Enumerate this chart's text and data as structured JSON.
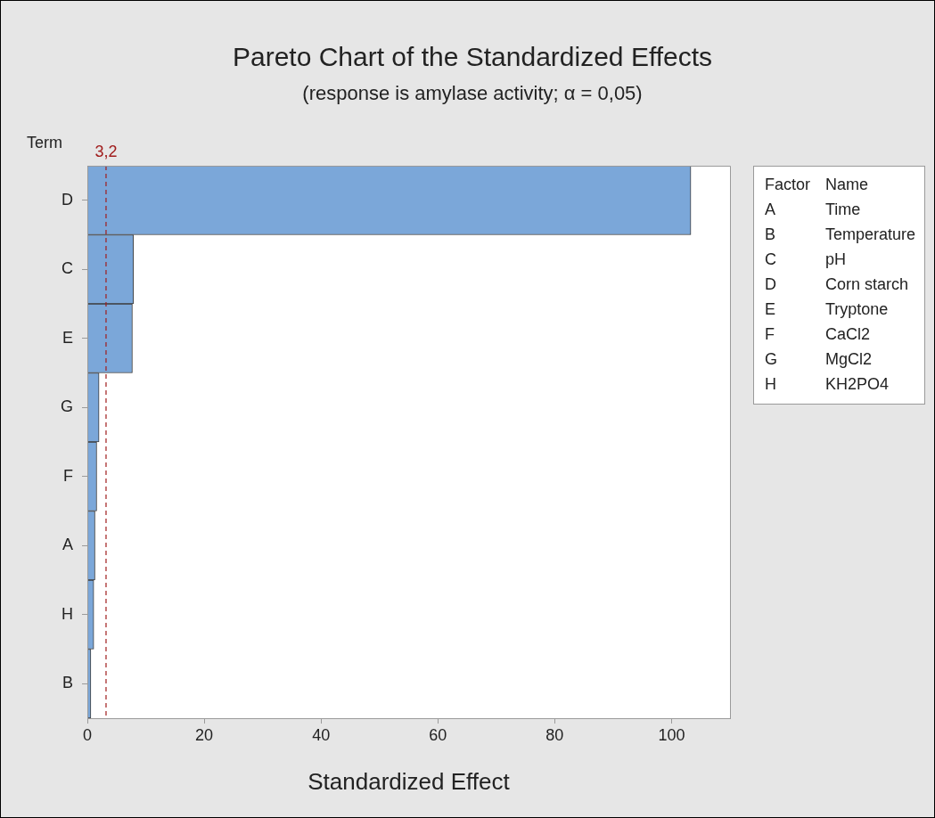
{
  "chart_data": {
    "type": "bar",
    "orientation": "horizontal",
    "title": "Pareto Chart of the Standardized Effects",
    "subtitle": "(response is amylase activity; α = 0,05)",
    "xlabel": "Standardized Effect",
    "ylabel": "Term",
    "categories": [
      "D",
      "C",
      "E",
      "G",
      "F",
      "A",
      "H",
      "B"
    ],
    "values": [
      103.3,
      7.9,
      7.7,
      2.0,
      1.6,
      1.3,
      1.1,
      0.6
    ],
    "color": "#7ba7d9",
    "xlim": [
      0,
      110
    ],
    "xticks": [
      0,
      20,
      40,
      60,
      80,
      100
    ],
    "ref_lines": [
      {
        "axis": "x",
        "value": 3.2,
        "label": "3,2",
        "color": "#a01c1c",
        "line_style": "dashed"
      }
    ],
    "annotations": [
      "Factor",
      "Name",
      "A",
      "Time",
      "B",
      "Temperature",
      "C",
      "pH",
      "D",
      "Corn starch",
      "E",
      "Tryptone",
      "F",
      "CaCl2",
      "G",
      "MgCl2",
      "H",
      "KH2PO4"
    ],
    "grid": false,
    "legend": false
  }
}
